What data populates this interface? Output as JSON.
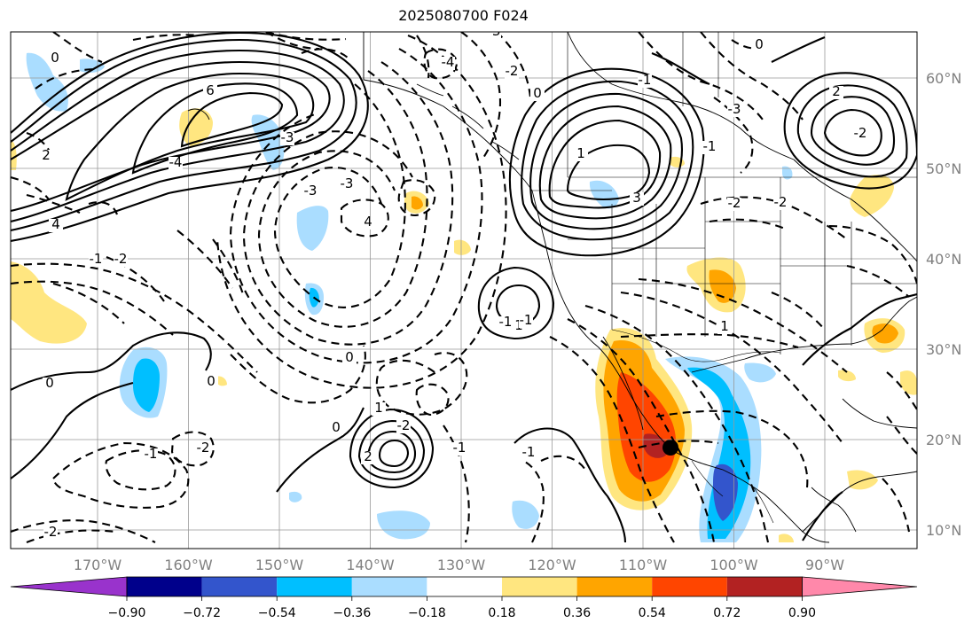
{
  "chart_data": {
    "type": "contour-map",
    "title": "2025080700 F024",
    "lon_ticks": [
      "170°W",
      "160°W",
      "150°W",
      "140°W",
      "130°W",
      "120°W",
      "110°W",
      "100°W",
      "90°W"
    ],
    "lat_ticks": [
      "60°N",
      "50°N",
      "40°N",
      "30°N",
      "20°N",
      "10°N"
    ],
    "colorbar": {
      "levels": [
        "−0.90",
        "−0.72",
        "−0.54",
        "−0.36",
        "−0.18",
        "0.18",
        "0.36",
        "0.54",
        "0.72",
        "0.90"
      ],
      "colors": [
        "#9933cc",
        "#00008b",
        "#3355cc",
        "#00bfff",
        "#aaddff",
        "#ffffff",
        "#ffe680",
        "#ffa500",
        "#ff4500",
        "#b22222",
        "#ff88aa"
      ]
    },
    "contour_labels": [
      "0",
      "0",
      "-2",
      "-4",
      "-3",
      "6",
      "4",
      "2",
      "-3",
      "4",
      "-1",
      "-2",
      "-2",
      "-3",
      "-4",
      "-1",
      "1",
      "-1",
      "0",
      "0",
      "-1",
      "-2",
      "2",
      "1",
      "0",
      "-1",
      "-2",
      "-3",
      "-1",
      "0",
      "3",
      "-3",
      "-2",
      "-2",
      "-2",
      "1",
      "-1",
      "-1",
      "0",
      "2",
      "1"
    ]
  }
}
